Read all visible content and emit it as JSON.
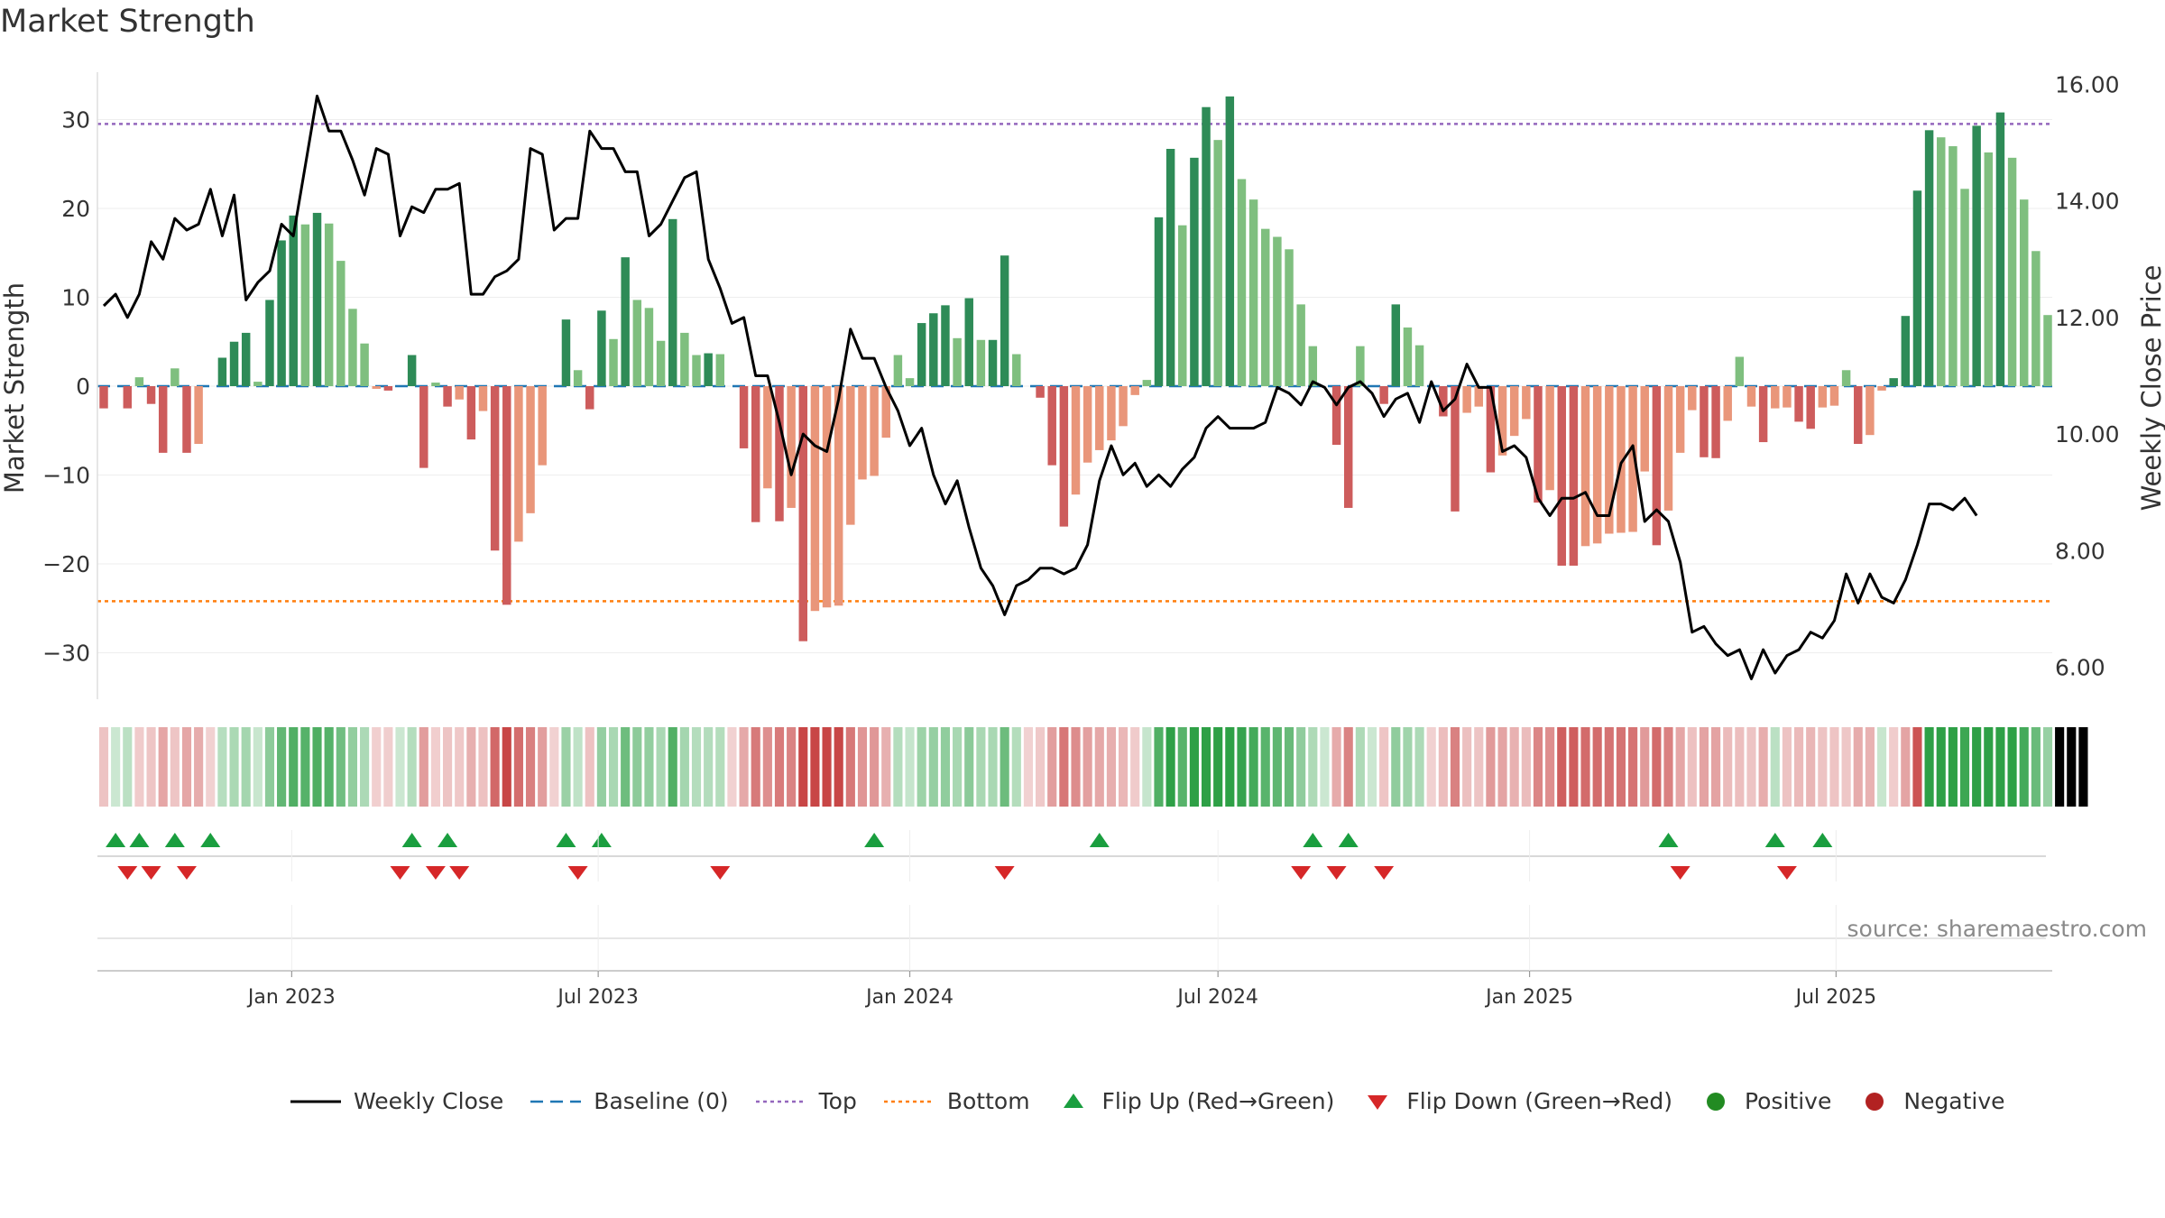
{
  "title": "Market Strength",
  "source": "source: sharemaestro.com",
  "legend": {
    "weekly_close": "Weekly Close",
    "baseline": "Baseline (0)",
    "top": "Top",
    "bottom": "Bottom",
    "flip_up": "Flip Up (Red→Green)",
    "flip_down": "Flip Down (Green→Red)",
    "positive": "Positive",
    "negative": "Negative"
  },
  "colors": {
    "pos_strong": "#2e8b57",
    "pos_light": "#7fbf7f",
    "neg_strong": "#cd5c5c",
    "neg_light": "#e9967a",
    "close": "#000000",
    "baseline": "#1f77b4",
    "top": "#9467bd",
    "bottom": "#ff7f0e",
    "flip_up": "#1a9e3f",
    "flip_down": "#d62728",
    "positive_dot": "#228b22",
    "negative_dot": "#b22222"
  },
  "chart_data": {
    "type": "bar",
    "start_date": "2022-09-12",
    "interval_days": 7,
    "ylabel": "Market Strength",
    "y2label": "Weekly Close Price",
    "ylim": [
      -35,
      36
    ],
    "y2lim": [
      5.0,
      16.3
    ],
    "yticks": [
      30,
      20,
      10,
      0,
      -10,
      -20,
      -30
    ],
    "yticklabels": [
      "30",
      "20",
      "10",
      "0",
      "−10",
      "−20",
      "−30"
    ],
    "y2ticks": [
      16,
      14,
      12,
      10,
      8,
      6
    ],
    "y2ticklabels": [
      "16.00",
      "14.00",
      "12.00",
      "10.00",
      "8.00",
      "6.00"
    ],
    "xticklabels": [
      {
        "date": "2023-01-01",
        "label": "Jan 2023"
      },
      {
        "date": "2023-07-01",
        "label": "Jul 2023"
      },
      {
        "date": "2024-01-01",
        "label": "Jan 2024"
      },
      {
        "date": "2024-07-01",
        "label": "Jul 2024"
      },
      {
        "date": "2025-01-01",
        "label": "Jan 2025"
      },
      {
        "date": "2025-07-01",
        "label": "Jul 2025"
      }
    ],
    "top_level": 29.5,
    "bottom_level": -24.2,
    "strength": [
      -2.5,
      0,
      -2.5,
      1,
      -2,
      -7.5,
      2,
      -7.5,
      -6.5,
      0,
      3.2,
      5,
      6,
      0.5,
      9.7,
      16.4,
      19.2,
      18.2,
      19.5,
      18.3,
      14.1,
      8.7,
      4.8,
      -0.3,
      -0.5,
      0,
      3.5,
      -9.2,
      0.4,
      -2.3,
      -1.5,
      -6,
      -2.8,
      -18.5,
      -24.6,
      -17.5,
      -14.3,
      -8.9,
      0,
      7.5,
      1.8,
      -2.6,
      8.5,
      5.3,
      14.5,
      9.7,
      8.8,
      5.1,
      18.8,
      6,
      3.5,
      3.7,
      3.6,
      0,
      -7,
      -15.3,
      -11.5,
      -15.2,
      -13.7,
      -28.7,
      -25.3,
      -24.9,
      -24.7,
      -15.6,
      -10.5,
      -10.1,
      -5.8,
      3.5,
      0.9,
      7.1,
      8.2,
      9.1,
      5.4,
      9.9,
      5.2,
      5.2,
      14.7,
      3.6,
      0,
      -1.3,
      -8.9,
      -15.8,
      -12.2,
      -8.6,
      -7.2,
      -6.1,
      -4.5,
      -1,
      0.7,
      19,
      26.7,
      18.1,
      25.7,
      31.4,
      27.7,
      32.6,
      23.3,
      21,
      17.7,
      16.8,
      15.4,
      9.2,
      4.5,
      0,
      -6.6,
      -13.7,
      4.5,
      0,
      -2,
      9.2,
      6.6,
      4.6,
      0,
      -3.4,
      -14.1,
      -3,
      -2.3,
      -9.7,
      -7.8,
      -5.6,
      -3.7,
      -13.1,
      -11.7,
      -20.2,
      -20.2,
      -18,
      -17.7,
      -16.6,
      -16.5,
      -16.4,
      -9.6,
      -17.9,
      -14,
      -7.5,
      -2.7,
      -8,
      -8.1,
      -3.9,
      3.3,
      -2.3,
      -6.3,
      -2.5,
      -2.4,
      -4,
      -4.8,
      -2.4,
      -2.2,
      1.8,
      -6.5,
      -5.5,
      -0.5,
      0.9,
      7.9,
      22,
      28.8,
      28,
      27,
      22.2,
      29.3,
      26.3,
      30.8,
      25.7,
      21,
      15.2,
      8
    ],
    "close": [
      12.2,
      12.4,
      12.0,
      12.4,
      13.3,
      13.0,
      13.7,
      13.5,
      13.6,
      14.2,
      13.4,
      14.1,
      12.3,
      12.6,
      12.8,
      13.6,
      13.4,
      14.6,
      15.8,
      15.2,
      15.2,
      14.7,
      14.1,
      14.9,
      14.8,
      13.4,
      13.9,
      13.8,
      14.2,
      14.2,
      14.3,
      12.4,
      12.4,
      12.7,
      12.8,
      13.0,
      14.9,
      14.8,
      13.5,
      13.7,
      13.7,
      15.2,
      14.9,
      14.9,
      14.5,
      14.5,
      13.4,
      13.6,
      14.0,
      14.4,
      14.5,
      13.0,
      12.5,
      11.9,
      12.0,
      11.0,
      11.0,
      10.2,
      9.3,
      10.0,
      9.8,
      9.7,
      10.6,
      11.8,
      11.3,
      11.3,
      10.8,
      10.4,
      9.8,
      10.1,
      9.3,
      8.8,
      9.2,
      8.4,
      7.7,
      7.4,
      6.9,
      7.4,
      7.5,
      7.7,
      7.7,
      7.6,
      7.7,
      8.1,
      9.2,
      9.8,
      9.3,
      9.5,
      9.1,
      9.3,
      9.1,
      9.4,
      9.6,
      10.1,
      10.3,
      10.1,
      10.1,
      10.1,
      10.2,
      10.8,
      10.7,
      10.5,
      10.9,
      10.8,
      10.5,
      10.8,
      10.9,
      10.7,
      10.3,
      10.6,
      10.7,
      10.2,
      10.9,
      10.4,
      10.6,
      11.2,
      10.8,
      10.8,
      9.7,
      9.8,
      9.6,
      8.9,
      8.6,
      8.9,
      8.9,
      9.0,
      8.6,
      8.6,
      9.5,
      9.8,
      8.5,
      8.7,
      8.5,
      7.8,
      6.6,
      6.7,
      6.4,
      6.2,
      6.3,
      5.8,
      6.3,
      5.9,
      6.2,
      6.3,
      6.6,
      6.5,
      6.8,
      7.6,
      7.1,
      7.6,
      7.2,
      7.1,
      7.5,
      8.1,
      8.8,
      8.8,
      8.7,
      8.9,
      8.6
    ],
    "flip_up": [
      "2022-09-19",
      "2022-10-03",
      "2022-10-24",
      "2022-11-14",
      "2023-03-13",
      "2023-04-03",
      "2023-06-12",
      "2023-07-03",
      "2023-12-11",
      "2024-04-22",
      "2024-08-26",
      "2024-09-16",
      "2025-03-24",
      "2025-05-26",
      "2025-06-23"
    ],
    "flip_down": [
      "2022-09-26",
      "2022-10-10",
      "2022-10-31",
      "2023-03-06",
      "2023-03-27",
      "2023-04-10",
      "2023-06-19",
      "2023-09-11",
      "2024-02-26",
      "2024-08-19",
      "2024-09-09",
      "2024-10-07",
      "2025-03-31",
      "2025-06-02"
    ],
    "regime_positive": [
      0,
      1,
      1,
      0,
      0,
      0,
      0,
      0,
      0,
      0,
      1,
      1,
      1,
      1,
      1,
      1,
      1,
      1,
      1,
      1,
      1,
      1,
      1,
      0,
      0,
      1,
      1,
      0,
      0,
      0,
      0,
      0,
      0,
      0,
      0,
      0,
      0,
      0,
      0,
      1,
      1,
      0,
      1,
      1,
      1,
      1,
      1,
      1,
      1,
      1,
      1,
      1,
      1,
      0,
      0,
      0,
      0,
      0,
      0,
      0,
      0,
      0,
      0,
      0,
      0,
      0,
      0,
      1,
      1,
      1,
      1,
      1,
      1,
      1,
      1,
      1,
      1,
      1,
      0,
      0,
      0,
      0,
      0,
      0,
      0,
      0,
      0,
      0,
      1,
      1,
      1,
      1,
      1,
      1,
      1,
      1,
      1,
      1,
      1,
      1,
      1,
      1,
      1,
      1,
      0,
      0,
      1,
      1,
      0,
      1,
      1,
      1,
      0,
      0,
      0,
      0,
      0,
      0,
      0,
      0,
      0,
      0,
      0,
      0,
      0,
      0,
      0,
      0,
      0,
      0,
      0,
      0,
      0,
      0,
      0,
      0,
      0,
      0,
      0,
      0,
      0,
      1,
      0,
      0,
      0,
      0,
      0,
      0,
      0,
      0,
      1,
      0,
      0,
      0,
      1,
      1,
      1,
      1,
      1,
      1,
      1,
      1,
      1,
      1,
      1,
      1,
      1,
      1
    ]
  }
}
